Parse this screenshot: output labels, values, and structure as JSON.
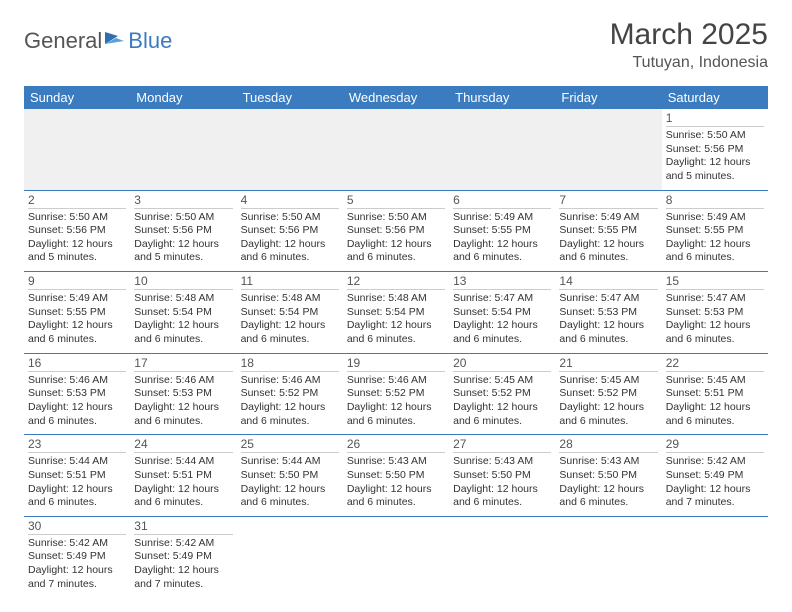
{
  "brand": {
    "part1": "General",
    "part2": "Blue"
  },
  "header": {
    "title": "March 2025",
    "location": "Tutuyan, Indonesia"
  },
  "colors": {
    "accent": "#3b7bbf",
    "header_bg": "#3b7bbf",
    "empty_bg": "#f0f0f0"
  },
  "weekdays": [
    "Sunday",
    "Monday",
    "Tuesday",
    "Wednesday",
    "Thursday",
    "Friday",
    "Saturday"
  ],
  "weeks": [
    [
      null,
      null,
      null,
      null,
      null,
      null,
      {
        "n": "1",
        "sr": "Sunrise: 5:50 AM",
        "ss": "Sunset: 5:56 PM",
        "d1": "Daylight: 12 hours",
        "d2": "and 5 minutes."
      }
    ],
    [
      {
        "n": "2",
        "sr": "Sunrise: 5:50 AM",
        "ss": "Sunset: 5:56 PM",
        "d1": "Daylight: 12 hours",
        "d2": "and 5 minutes."
      },
      {
        "n": "3",
        "sr": "Sunrise: 5:50 AM",
        "ss": "Sunset: 5:56 PM",
        "d1": "Daylight: 12 hours",
        "d2": "and 5 minutes."
      },
      {
        "n": "4",
        "sr": "Sunrise: 5:50 AM",
        "ss": "Sunset: 5:56 PM",
        "d1": "Daylight: 12 hours",
        "d2": "and 6 minutes."
      },
      {
        "n": "5",
        "sr": "Sunrise: 5:50 AM",
        "ss": "Sunset: 5:56 PM",
        "d1": "Daylight: 12 hours",
        "d2": "and 6 minutes."
      },
      {
        "n": "6",
        "sr": "Sunrise: 5:49 AM",
        "ss": "Sunset: 5:55 PM",
        "d1": "Daylight: 12 hours",
        "d2": "and 6 minutes."
      },
      {
        "n": "7",
        "sr": "Sunrise: 5:49 AM",
        "ss": "Sunset: 5:55 PM",
        "d1": "Daylight: 12 hours",
        "d2": "and 6 minutes."
      },
      {
        "n": "8",
        "sr": "Sunrise: 5:49 AM",
        "ss": "Sunset: 5:55 PM",
        "d1": "Daylight: 12 hours",
        "d2": "and 6 minutes."
      }
    ],
    [
      {
        "n": "9",
        "sr": "Sunrise: 5:49 AM",
        "ss": "Sunset: 5:55 PM",
        "d1": "Daylight: 12 hours",
        "d2": "and 6 minutes."
      },
      {
        "n": "10",
        "sr": "Sunrise: 5:48 AM",
        "ss": "Sunset: 5:54 PM",
        "d1": "Daylight: 12 hours",
        "d2": "and 6 minutes."
      },
      {
        "n": "11",
        "sr": "Sunrise: 5:48 AM",
        "ss": "Sunset: 5:54 PM",
        "d1": "Daylight: 12 hours",
        "d2": "and 6 minutes."
      },
      {
        "n": "12",
        "sr": "Sunrise: 5:48 AM",
        "ss": "Sunset: 5:54 PM",
        "d1": "Daylight: 12 hours",
        "d2": "and 6 minutes."
      },
      {
        "n": "13",
        "sr": "Sunrise: 5:47 AM",
        "ss": "Sunset: 5:54 PM",
        "d1": "Daylight: 12 hours",
        "d2": "and 6 minutes."
      },
      {
        "n": "14",
        "sr": "Sunrise: 5:47 AM",
        "ss": "Sunset: 5:53 PM",
        "d1": "Daylight: 12 hours",
        "d2": "and 6 minutes."
      },
      {
        "n": "15",
        "sr": "Sunrise: 5:47 AM",
        "ss": "Sunset: 5:53 PM",
        "d1": "Daylight: 12 hours",
        "d2": "and 6 minutes."
      }
    ],
    [
      {
        "n": "16",
        "sr": "Sunrise: 5:46 AM",
        "ss": "Sunset: 5:53 PM",
        "d1": "Daylight: 12 hours",
        "d2": "and 6 minutes."
      },
      {
        "n": "17",
        "sr": "Sunrise: 5:46 AM",
        "ss": "Sunset: 5:53 PM",
        "d1": "Daylight: 12 hours",
        "d2": "and 6 minutes."
      },
      {
        "n": "18",
        "sr": "Sunrise: 5:46 AM",
        "ss": "Sunset: 5:52 PM",
        "d1": "Daylight: 12 hours",
        "d2": "and 6 minutes."
      },
      {
        "n": "19",
        "sr": "Sunrise: 5:46 AM",
        "ss": "Sunset: 5:52 PM",
        "d1": "Daylight: 12 hours",
        "d2": "and 6 minutes."
      },
      {
        "n": "20",
        "sr": "Sunrise: 5:45 AM",
        "ss": "Sunset: 5:52 PM",
        "d1": "Daylight: 12 hours",
        "d2": "and 6 minutes."
      },
      {
        "n": "21",
        "sr": "Sunrise: 5:45 AM",
        "ss": "Sunset: 5:52 PM",
        "d1": "Daylight: 12 hours",
        "d2": "and 6 minutes."
      },
      {
        "n": "22",
        "sr": "Sunrise: 5:45 AM",
        "ss": "Sunset: 5:51 PM",
        "d1": "Daylight: 12 hours",
        "d2": "and 6 minutes."
      }
    ],
    [
      {
        "n": "23",
        "sr": "Sunrise: 5:44 AM",
        "ss": "Sunset: 5:51 PM",
        "d1": "Daylight: 12 hours",
        "d2": "and 6 minutes."
      },
      {
        "n": "24",
        "sr": "Sunrise: 5:44 AM",
        "ss": "Sunset: 5:51 PM",
        "d1": "Daylight: 12 hours",
        "d2": "and 6 minutes."
      },
      {
        "n": "25",
        "sr": "Sunrise: 5:44 AM",
        "ss": "Sunset: 5:50 PM",
        "d1": "Daylight: 12 hours",
        "d2": "and 6 minutes."
      },
      {
        "n": "26",
        "sr": "Sunrise: 5:43 AM",
        "ss": "Sunset: 5:50 PM",
        "d1": "Daylight: 12 hours",
        "d2": "and 6 minutes."
      },
      {
        "n": "27",
        "sr": "Sunrise: 5:43 AM",
        "ss": "Sunset: 5:50 PM",
        "d1": "Daylight: 12 hours",
        "d2": "and 6 minutes."
      },
      {
        "n": "28",
        "sr": "Sunrise: 5:43 AM",
        "ss": "Sunset: 5:50 PM",
        "d1": "Daylight: 12 hours",
        "d2": "and 6 minutes."
      },
      {
        "n": "29",
        "sr": "Sunrise: 5:42 AM",
        "ss": "Sunset: 5:49 PM",
        "d1": "Daylight: 12 hours",
        "d2": "and 7 minutes."
      }
    ],
    [
      {
        "n": "30",
        "sr": "Sunrise: 5:42 AM",
        "ss": "Sunset: 5:49 PM",
        "d1": "Daylight: 12 hours",
        "d2": "and 7 minutes."
      },
      {
        "n": "31",
        "sr": "Sunrise: 5:42 AM",
        "ss": "Sunset: 5:49 PM",
        "d1": "Daylight: 12 hours",
        "d2": "and 7 minutes."
      },
      null,
      null,
      null,
      null,
      null
    ]
  ]
}
